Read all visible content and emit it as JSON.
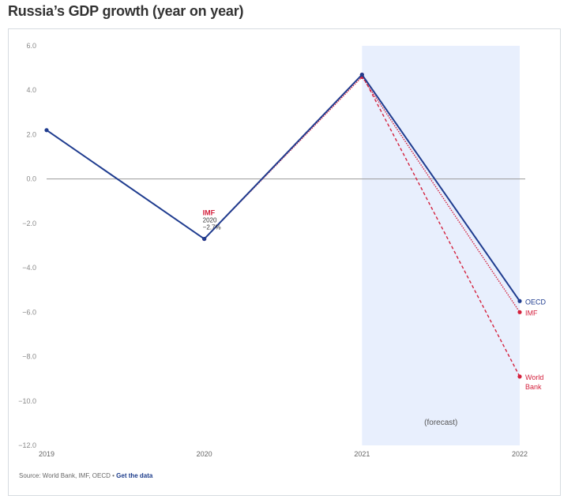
{
  "title": "Russia’s GDP growth (year on year)",
  "source": {
    "text": "Source: World Bank, IMF, OECD • ",
    "link": "Get the data"
  },
  "chart_data": {
    "type": "line",
    "x": [
      "2019",
      "2020",
      "2021",
      "2022"
    ],
    "ylim": [
      -12,
      6
    ],
    "yticks": [
      "6.0",
      "4.0",
      "2.0",
      "0.0",
      "−2.0",
      "−4.0",
      "−6.0",
      "−8.0",
      "−10.0",
      "−12.0"
    ],
    "ytick_values": [
      6,
      4,
      2,
      0,
      -2,
      -4,
      -6,
      -8,
      -10,
      -12
    ],
    "forecast_label": "(forecast)",
    "forecast_range": [
      "2021",
      "2022"
    ],
    "series": [
      {
        "name": "OECD",
        "values": [
          2.2,
          -2.7,
          4.7,
          -5.5
        ],
        "color": "#1f3c8f",
        "style": "solid"
      },
      {
        "name": "IMF",
        "values": [
          null,
          -2.7,
          4.6,
          -6.0
        ],
        "color": "#d4213d",
        "style": "dotted"
      },
      {
        "name": "World Bank",
        "label_lines": [
          "World",
          "Bank"
        ],
        "values": [
          null,
          null,
          4.7,
          -8.9
        ],
        "color": "#d4213d",
        "style": "dashed"
      }
    ],
    "annotation": {
      "series": "IMF",
      "year": "2020",
      "value": "−2.7%"
    },
    "grid": false,
    "legend": "inline-right"
  }
}
